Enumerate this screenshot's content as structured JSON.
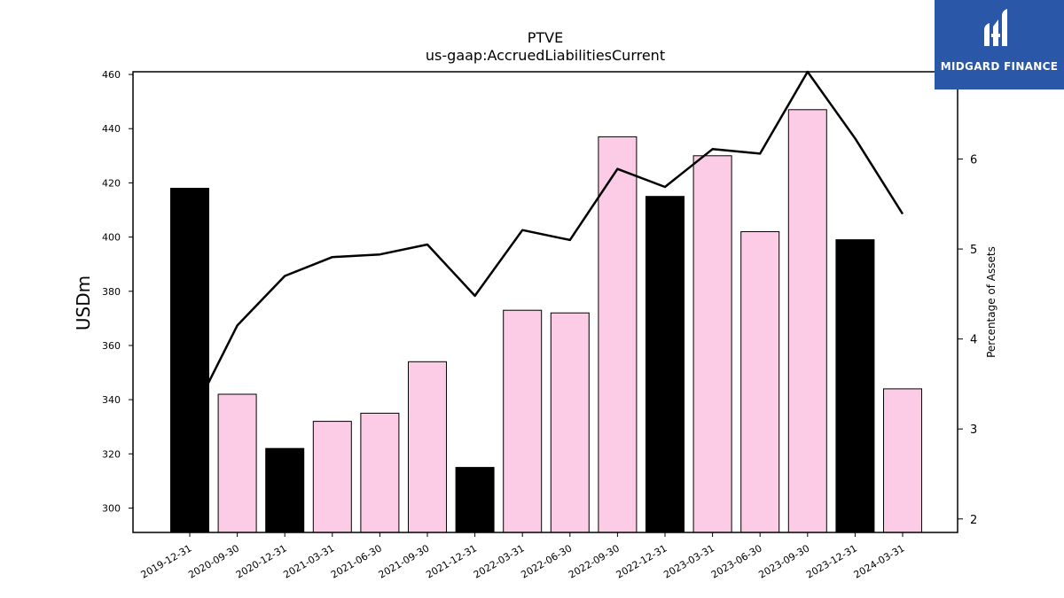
{
  "chart_data": {
    "type": "bar",
    "title": "PTVE",
    "subtitle": "us-gaap:AccruedLiabilitiesCurrent",
    "ylabel": "USDm",
    "y2label": "Percentage of Assets",
    "categories": [
      "2019-12-31",
      "2020-09-30",
      "2020-12-31",
      "2021-03-31",
      "2021-06-30",
      "2021-09-30",
      "2021-12-31",
      "2022-03-31",
      "2022-06-30",
      "2022-09-30",
      "2022-12-31",
      "2023-03-31",
      "2023-06-30",
      "2023-09-30",
      "2023-12-31",
      "2024-03-31"
    ],
    "values": [
      418,
      342,
      322,
      332,
      335,
      354,
      315,
      373,
      372,
      437,
      415,
      430,
      402,
      447,
      399,
      344
    ],
    "bar_colors": [
      "#000000",
      "#fccbe6",
      "#000000",
      "#fccbe6",
      "#fccbe6",
      "#fccbe6",
      "#000000",
      "#fccbe6",
      "#fccbe6",
      "#fccbe6",
      "#000000",
      "#fccbe6",
      "#fccbe6",
      "#fccbe6",
      "#000000",
      "#fccbe6"
    ],
    "ylim": [
      291,
      461
    ],
    "yticks": [
      300,
      320,
      340,
      360,
      380,
      400,
      420,
      440,
      460
    ],
    "series": [
      {
        "type": "line",
        "axis": "right",
        "color": "#000000",
        "values": [
          3.1,
          4.15,
          4.7,
          4.91,
          4.94,
          5.05,
          4.48,
          5.21,
          5.1,
          5.89,
          5.69,
          6.11,
          6.06,
          6.97,
          6.23,
          5.39
        ]
      }
    ],
    "y2lim": [
      1.85,
      6.97
    ],
    "y2ticks": [
      2,
      3,
      4,
      5,
      6
    ],
    "grid": false
  },
  "logo": {
    "text": "MIDGARD FINANCE",
    "icon": "midgard-logo-icon",
    "background": "#2b57a8"
  }
}
